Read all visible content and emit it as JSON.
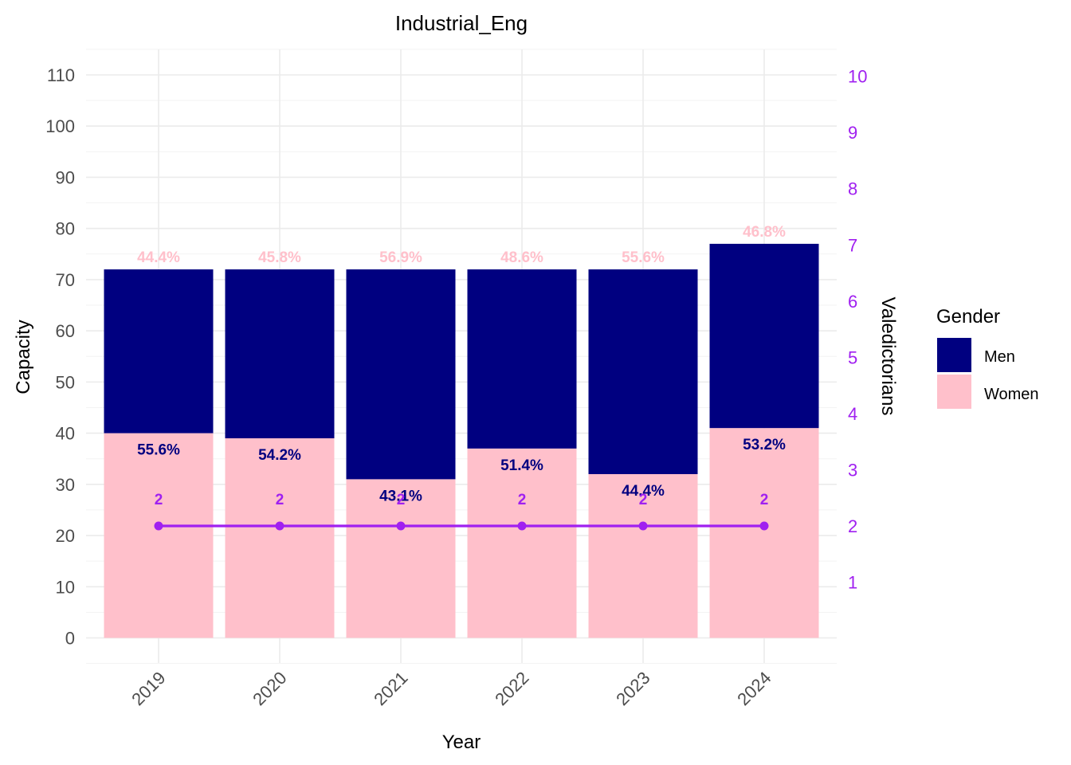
{
  "chart_data": {
    "type": "bar",
    "title": "Industrial_Eng",
    "xlabel": "Year",
    "ylabel": "Capacity",
    "y2label": "Valedictorians",
    "categories": [
      "2019",
      "2020",
      "2021",
      "2022",
      "2023",
      "2024"
    ],
    "ylim": [
      -5,
      115
    ],
    "yticks": [
      0,
      10,
      20,
      30,
      40,
      50,
      60,
      70,
      80,
      90,
      100,
      110
    ],
    "y2ticks": [
      1,
      2,
      3,
      4,
      5,
      6,
      7,
      8,
      9,
      10
    ],
    "stacked": true,
    "series": [
      {
        "name": "Women",
        "color": "#ffc0cb",
        "values": [
          40,
          39,
          31,
          37,
          32,
          41
        ],
        "labels": [
          "55.6%",
          "54.2%",
          "43.1%",
          "51.4%",
          "44.4%",
          "53.2%"
        ],
        "label_color": "#000080"
      },
      {
        "name": "Men",
        "color": "#000080",
        "values": [
          32,
          33,
          41,
          35,
          40,
          36
        ],
        "labels": [
          "44.4%",
          "45.8%",
          "56.9%",
          "48.6%",
          "55.6%",
          "46.8%"
        ],
        "label_color": "#ffc0cb"
      }
    ],
    "valedictorians": {
      "name": "Valedictorians",
      "color": "#a020f0",
      "values": [
        2,
        2,
        2,
        2,
        2,
        2
      ],
      "labels": [
        "2",
        "2",
        "2",
        "2",
        "2",
        "2"
      ]
    },
    "legend": {
      "title": "Gender",
      "position": "right",
      "entries": [
        {
          "name": "Men",
          "color": "#000080"
        },
        {
          "name": "Women",
          "color": "#ffc0cb"
        }
      ]
    },
    "grid": true
  }
}
